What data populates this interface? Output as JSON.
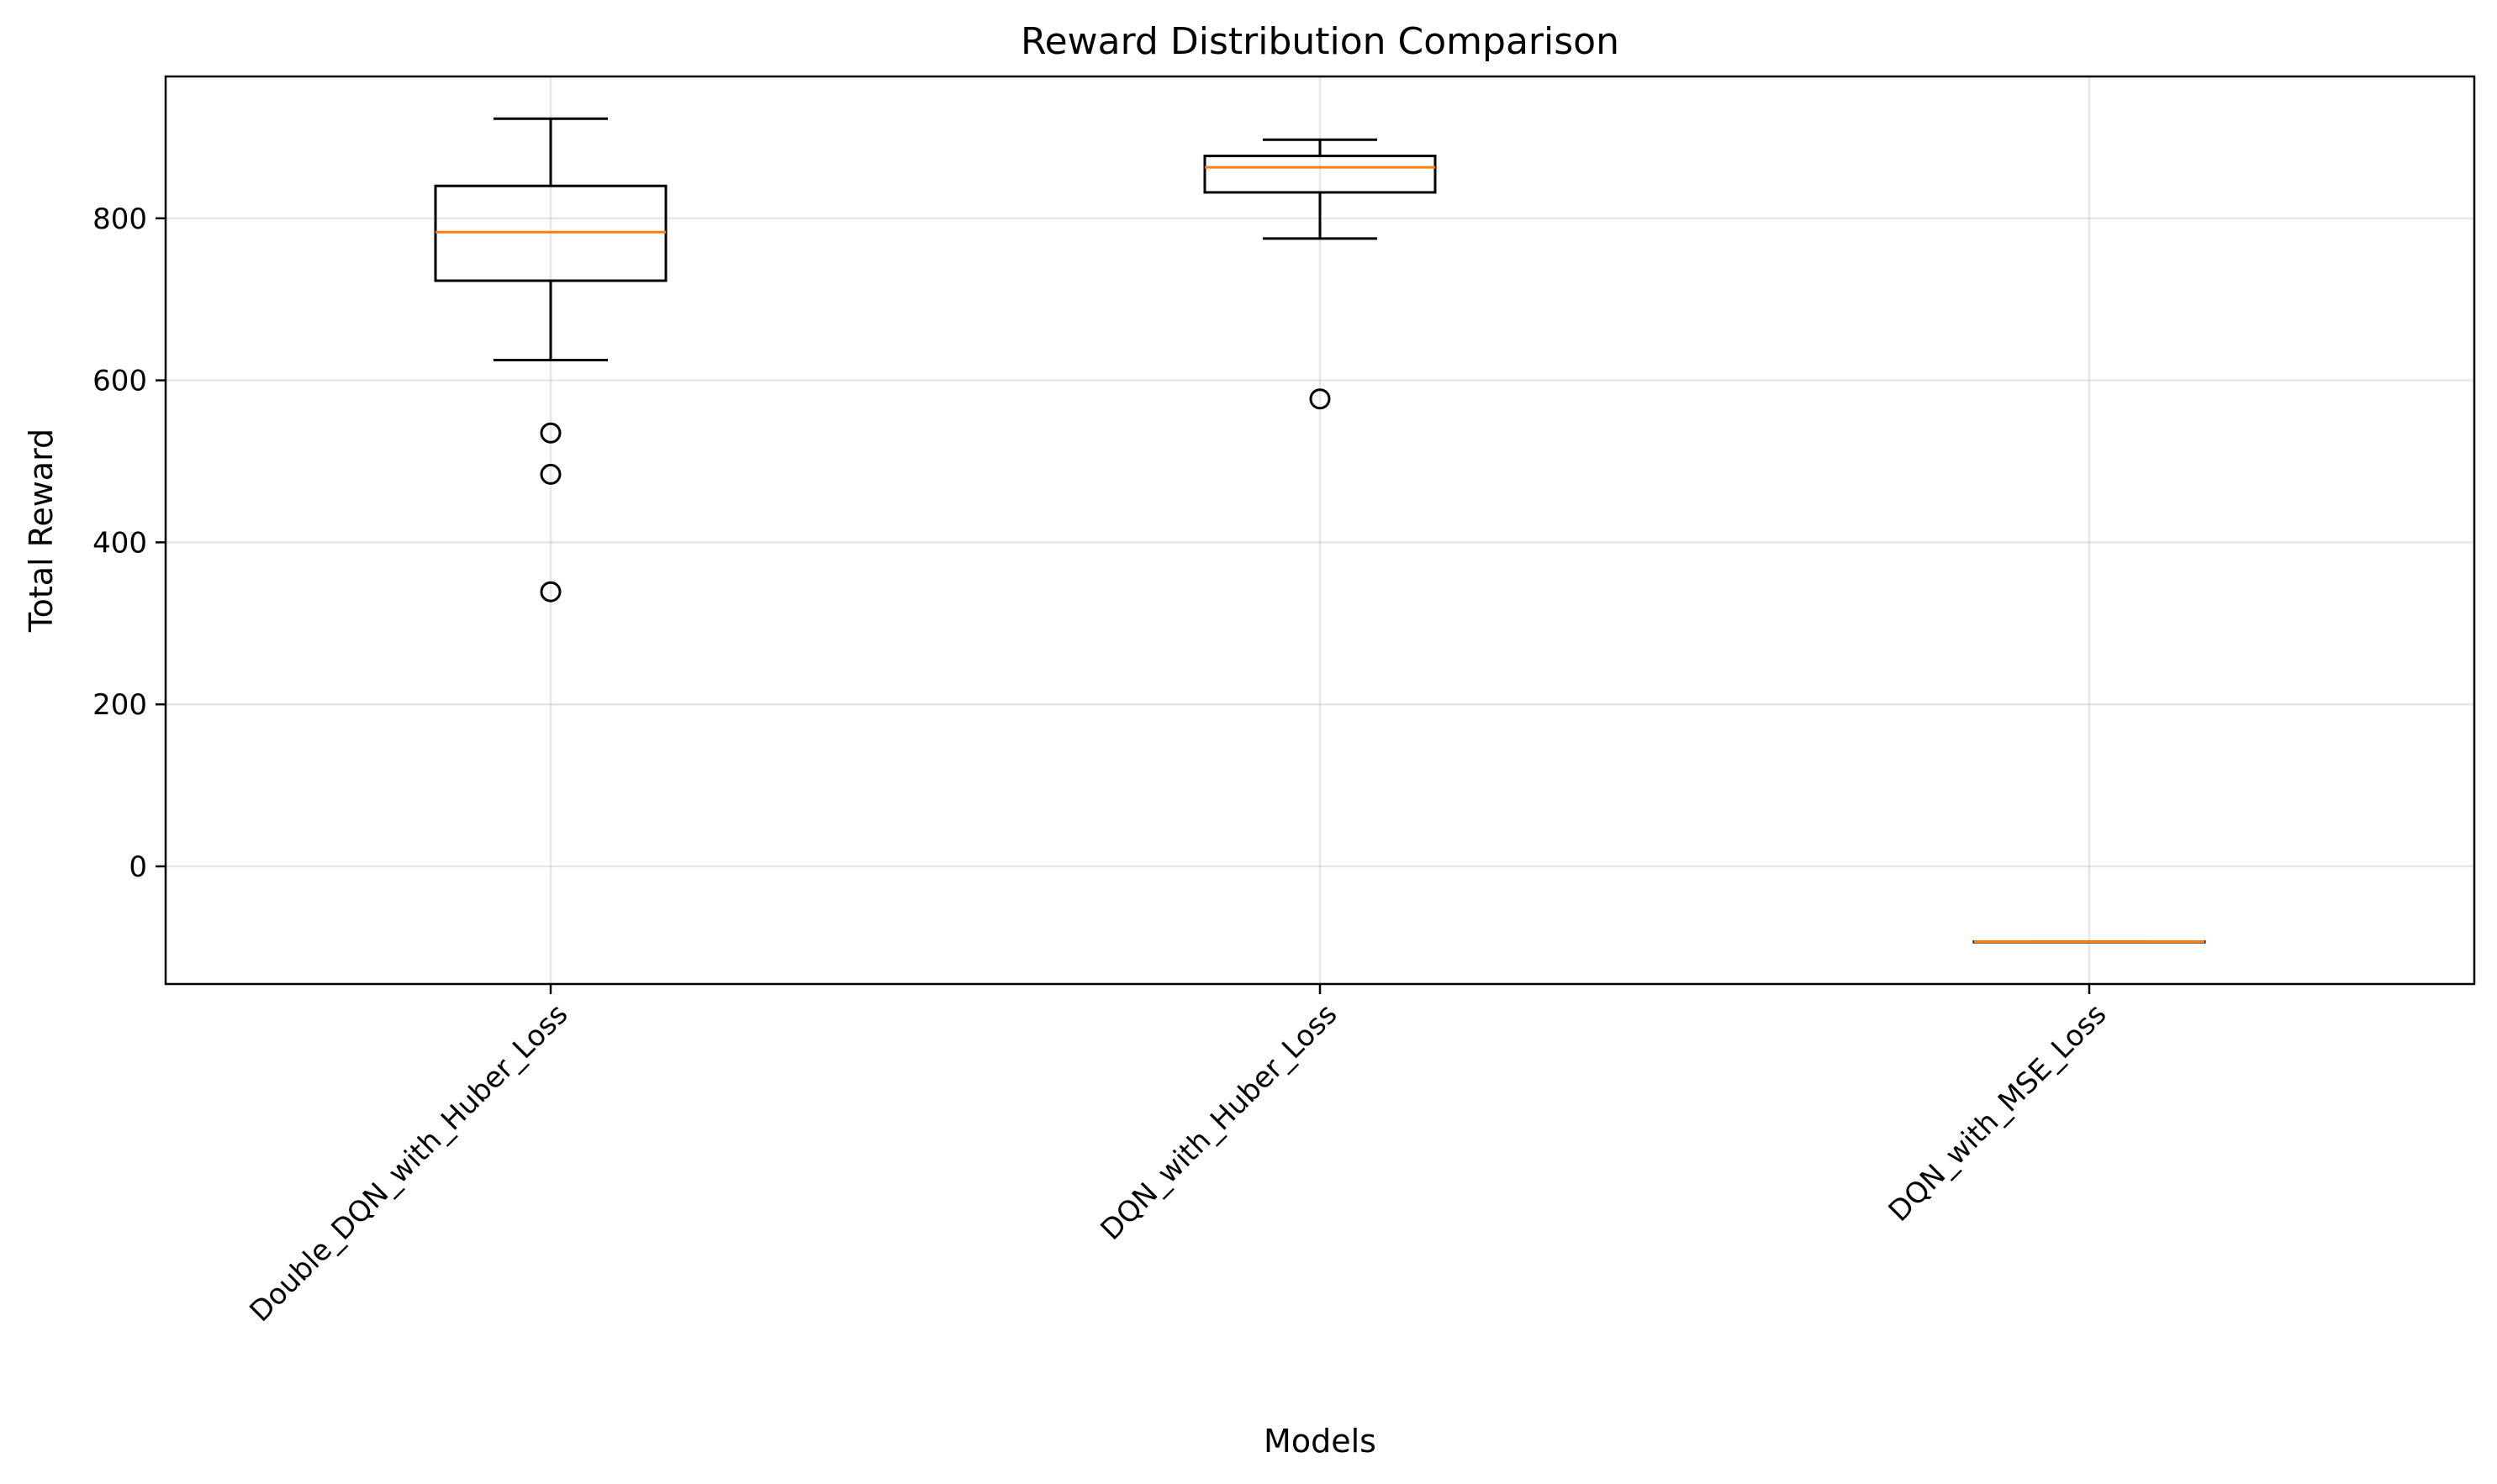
{
  "chart_data": {
    "type": "box",
    "title": "Reward Distribution Comparison",
    "xlabel": "Models",
    "ylabel": "Total Reward",
    "ylim": [
      -145,
      975
    ],
    "yticks": [
      0,
      200,
      400,
      600,
      800
    ],
    "grid": true,
    "median_color": "#ff7f0e",
    "box_color": "#000000",
    "categories": [
      "Double_DQN_with_Huber_Loss",
      "DQN_with_Huber_Loss",
      "DQN_with_MSE_Loss"
    ],
    "boxes": [
      {
        "whisker_low": 625,
        "q1": 723,
        "median": 783,
        "q3": 840,
        "whisker_high": 923,
        "outliers": [
          535,
          484,
          339
        ]
      },
      {
        "whisker_low": 775,
        "q1": 832,
        "median": 863,
        "q3": 877,
        "whisker_high": 897,
        "outliers": [
          577
        ]
      },
      {
        "whisker_low": -93,
        "q1": -93,
        "median": -93,
        "q3": -93,
        "whisker_high": -93,
        "outliers": []
      }
    ]
  }
}
